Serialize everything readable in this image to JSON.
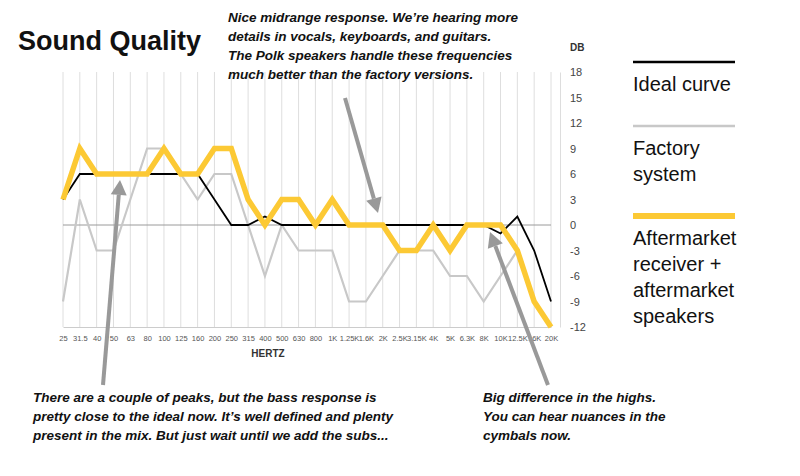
{
  "chart_data": {
    "type": "line",
    "title": "Sound Quality",
    "x_label": "HERTZ",
    "y_label": "DB",
    "categories": [
      "25",
      "31.5",
      "40",
      "50",
      "63",
      "80",
      "100",
      "125",
      "160",
      "200",
      "250",
      "315",
      "400",
      "500",
      "630",
      "800",
      "1K",
      "1.25K",
      "1.6K",
      "2K",
      "2.5K",
      "3.15K",
      "4K",
      "5K",
      "6.3K",
      "8K",
      "10K",
      "12.5K",
      "16K",
      "20K"
    ],
    "series": [
      {
        "name": "Ideal curve",
        "color": "#000000",
        "values": [
          3,
          6,
          6,
          6,
          6,
          6,
          6,
          6,
          6,
          3,
          0,
          0,
          1,
          0,
          0,
          0,
          0,
          0,
          0,
          0,
          0,
          0,
          0,
          0,
          0,
          0,
          -1,
          1,
          -3,
          -9
        ]
      },
      {
        "name": "Factory system",
        "color": "#c8c8c8",
        "values": [
          -9,
          3,
          -3,
          -3,
          3,
          9,
          9,
          6,
          3,
          6,
          6,
          0,
          -6,
          0,
          -3,
          -3,
          -3,
          -9,
          -9,
          -6,
          -3,
          -3,
          -3,
          -6,
          -6,
          -9,
          -6,
          -3,
          -9,
          -12
        ]
      },
      {
        "name": "Aftermarket receiver + aftermarket speakers",
        "color": "#fcc934",
        "values": [
          3,
          9,
          6,
          6,
          6,
          6,
          9,
          6,
          6,
          9,
          9,
          3,
          0,
          3,
          3,
          0,
          3,
          0,
          0,
          0,
          -3,
          -3,
          0,
          -3,
          0,
          0,
          0,
          -3,
          -9,
          -12
        ]
      }
    ],
    "ylim": [
      -12,
      18
    ],
    "yticks": [
      -12,
      -9,
      -6,
      -3,
      0,
      3,
      6,
      9,
      12,
      15,
      18
    ],
    "grid": true,
    "legend": "right",
    "annotations": [
      {
        "text": [
          "Nice midrange response. We’re hearing more",
          "details in vocals, keyboards, and guitars.",
          "The Polk speakers handle these frequencies",
          "much better than the factory versions."
        ]
      },
      {
        "text": [
          "There are a couple of peaks, but the bass response is",
          "pretty close to the ideal now. It’s well defined and plenty",
          "present in the mix. But just wait until we add the subs..."
        ]
      },
      {
        "text": [
          "Big difference in the highs.",
          "You can hear nuances in the",
          "cymbals now."
        ]
      }
    ]
  }
}
